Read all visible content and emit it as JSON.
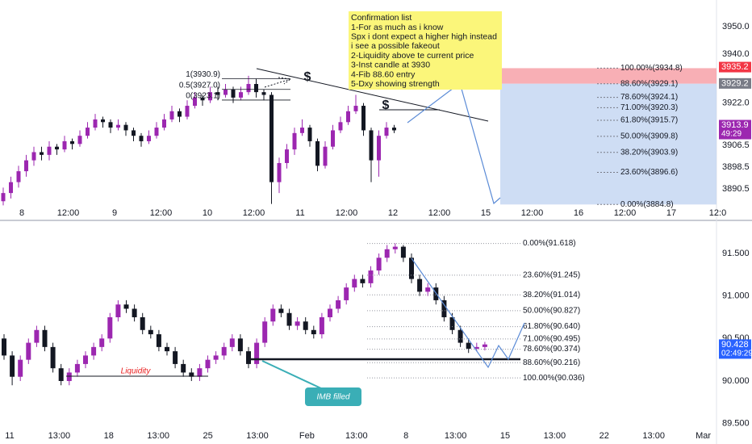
{
  "chart_data": [
    {
      "type": "candlestick",
      "ylim": [
        3884.3,
        3959.8
      ],
      "yticks": [
        {
          "value": 3950,
          "label": "3950.0"
        },
        {
          "value": 3940,
          "label": "3940.0"
        },
        {
          "value": 3922,
          "label": "3922.0"
        },
        {
          "value": 3906.5,
          "label": "3906.5"
        },
        {
          "value": 3898.5,
          "label": "3898.5"
        },
        {
          "value": 3890.5,
          "label": "3890.5"
        }
      ],
      "x_labels": [
        "8",
        "12:00",
        "9",
        "12:00",
        "10",
        "12:00",
        "11",
        "12:00",
        "12",
        "12:00",
        "15",
        "12:00",
        "16",
        "12:00",
        "17",
        "12:0"
      ],
      "up_color": "#9c27b0",
      "down_color": "#131722",
      "grid": false,
      "candles": [
        [
          3886,
          3891,
          3884.5,
          3889
        ],
        [
          3889,
          3895,
          3887,
          3893
        ],
        [
          3893,
          3899,
          3891,
          3897
        ],
        [
          3897,
          3903,
          3895,
          3901
        ],
        [
          3901,
          3906,
          3899,
          3904
        ],
        [
          3904,
          3906,
          3901,
          3903
        ],
        [
          3903,
          3908,
          3901,
          3906
        ],
        [
          3906,
          3907,
          3903,
          3905
        ],
        [
          3905,
          3910,
          3904,
          3908
        ],
        [
          3908,
          3909,
          3905,
          3907
        ],
        [
          3907,
          3912,
          3906,
          3910
        ],
        [
          3910,
          3915,
          3909,
          3913
        ],
        [
          3913,
          3918,
          3912,
          3916
        ],
        [
          3916,
          3917,
          3913,
          3915
        ],
        [
          3915,
          3916,
          3911,
          3913
        ],
        [
          3913,
          3916,
          3912,
          3914
        ],
        [
          3914,
          3915,
          3910,
          3912
        ],
        [
          3912,
          3913,
          3908,
          3910
        ],
        [
          3910,
          3911,
          3906,
          3908
        ],
        [
          3908,
          3912,
          3907,
          3910
        ],
        [
          3910,
          3915,
          3909,
          3913
        ],
        [
          3913,
          3918,
          3912,
          3916
        ],
        [
          3916,
          3921,
          3915,
          3919
        ],
        [
          3919,
          3920,
          3915,
          3917
        ],
        [
          3917,
          3923,
          3916,
          3921
        ],
        [
          3921,
          3926,
          3920,
          3924
        ],
        [
          3924,
          3925,
          3921,
          3923
        ],
        [
          3923,
          3928,
          3922,
          3926
        ],
        [
          3926,
          3928,
          3923,
          3925
        ],
        [
          3925,
          3929,
          3924,
          3927
        ],
        [
          3927,
          3928,
          3922,
          3924
        ],
        [
          3924,
          3928,
          3923,
          3926
        ],
        [
          3926,
          3932,
          3925,
          3929
        ],
        [
          3929,
          3931,
          3924,
          3926
        ],
        [
          3926,
          3927,
          3923,
          3925
        ],
        [
          3925,
          3926,
          3885,
          3893
        ],
        [
          3893,
          3902,
          3889,
          3900
        ],
        [
          3900,
          3907,
          3898,
          3905
        ],
        [
          3905,
          3913,
          3903,
          3911
        ],
        [
          3911,
          3916,
          3910,
          3913
        ],
        [
          3913,
          3914,
          3906,
          3908
        ],
        [
          3908,
          3909,
          3897,
          3899
        ],
        [
          3899,
          3908,
          3898,
          3906
        ],
        [
          3906,
          3914,
          3905,
          3912
        ],
        [
          3912,
          3917,
          3911,
          3915
        ],
        [
          3915,
          3921,
          3914,
          3919
        ],
        [
          3919,
          3925,
          3918,
          3921
        ],
        [
          3921,
          3922,
          3910,
          3912
        ],
        [
          3912,
          3913,
          3893,
          3901
        ],
        [
          3901,
          3912,
          3895,
          3910
        ],
        [
          3910,
          3915,
          3909,
          3913
        ],
        [
          3913,
          3914,
          3911,
          3912
        ]
      ],
      "fib_levels": [
        {
          "value": 3934.8,
          "label": "100.00%(3934.8)"
        },
        {
          "value": 3929.1,
          "label": "88.60%(3929.1)"
        },
        {
          "value": 3924.1,
          "label": "78.60%(3924.1)"
        },
        {
          "value": 3920.3,
          "label": "71.00%(3920.3)"
        },
        {
          "value": 3915.7,
          "label": "61.80%(3915.7)"
        },
        {
          "value": 3909.8,
          "label": "50.00%(3909.8)"
        },
        {
          "value": 3903.9,
          "label": "38.20%(3903.9)"
        },
        {
          "value": 3896.6,
          "label": "23.60%(3896.6)"
        },
        {
          "value": 3884.8,
          "label": "0.00%(3884.8)"
        }
      ],
      "small_fib": [
        {
          "value": 3930.9,
          "label": "1(3930.9)"
        },
        {
          "value": 3927.0,
          "label": "0.5(3927.0)"
        },
        {
          "value": 3923.1,
          "label": "0(3923.1)"
        }
      ],
      "price_tags": [
        {
          "value": 3935.2,
          "color": "#f23645"
        },
        {
          "value": 3929.2,
          "color": "#787b86"
        },
        {
          "value": 3913.9,
          "color": "#9c27b0",
          "countdown": "49:29"
        }
      ],
      "markers": [
        "$",
        "$"
      ],
      "note": {
        "title": "Confirmation list",
        "lines": [
          "1-For as much as i know",
          "Spx i dont expect a higher high instead",
          "i see a possible fakeout",
          "2-Liquidity above te current price",
          "3-Inst candle at 3930",
          "4-Fib 88.60 entry",
          "5-Dxy showing strength"
        ]
      }
    },
    {
      "type": "candlestick",
      "ylim": [
        89.449,
        91.823
      ],
      "yticks": [
        {
          "value": 91.5,
          "label": "91.500"
        },
        {
          "value": 91,
          "label": "91.000"
        },
        {
          "value": 90.5,
          "label": "90.500"
        },
        {
          "value": 90,
          "label": "90.000"
        },
        {
          "value": 89.5,
          "label": "89.500"
        }
      ],
      "x_labels": [
        "11",
        "13:00",
        "18",
        "13:00",
        "25",
        "13:00",
        "Feb",
        "13:00",
        "8",
        "13:00",
        "15",
        "13:00",
        "22",
        "13:00",
        "Mar"
      ],
      "up_color": "#9c27b0",
      "down_color": "#131722",
      "grid": false,
      "candles": [
        [
          90.5,
          90.55,
          90.25,
          90.3
        ],
        [
          90.3,
          90.35,
          89.95,
          90.05
        ],
        [
          90.05,
          90.3,
          90.0,
          90.25
        ],
        [
          90.25,
          90.5,
          90.2,
          90.45
        ],
        [
          90.45,
          90.65,
          90.4,
          90.6
        ],
        [
          90.6,
          90.65,
          90.35,
          90.4
        ],
        [
          90.4,
          90.45,
          90.1,
          90.15
        ],
        [
          90.15,
          90.2,
          89.95,
          90.0
        ],
        [
          90.0,
          90.15,
          89.95,
          90.1
        ],
        [
          90.1,
          90.25,
          90.05,
          90.2
        ],
        [
          90.2,
          90.35,
          90.15,
          90.3
        ],
        [
          90.3,
          90.45,
          90.25,
          90.4
        ],
        [
          90.4,
          90.55,
          90.35,
          90.5
        ],
        [
          90.5,
          90.8,
          90.45,
          90.75
        ],
        [
          90.75,
          90.95,
          90.7,
          90.9
        ],
        [
          90.9,
          90.95,
          90.8,
          90.85
        ],
        [
          90.85,
          90.9,
          90.7,
          90.75
        ],
        [
          90.75,
          90.8,
          90.55,
          90.6
        ],
        [
          90.6,
          90.65,
          90.5,
          90.55
        ],
        [
          90.55,
          90.6,
          90.35,
          90.4
        ],
        [
          90.4,
          90.45,
          90.3,
          90.35
        ],
        [
          90.35,
          90.4,
          90.15,
          90.2
        ],
        [
          90.2,
          90.25,
          90.05,
          90.1
        ],
        [
          90.1,
          90.15,
          90.0,
          90.05
        ],
        [
          90.05,
          90.2,
          90.0,
          90.15
        ],
        [
          90.15,
          90.3,
          90.1,
          90.25
        ],
        [
          90.25,
          90.35,
          90.2,
          90.3
        ],
        [
          90.3,
          90.45,
          90.25,
          90.4
        ],
        [
          90.4,
          90.55,
          90.35,
          90.5
        ],
        [
          90.5,
          90.55,
          90.3,
          90.35
        ],
        [
          90.35,
          90.4,
          90.15,
          90.2
        ],
        [
          90.2,
          90.5,
          90.15,
          90.45
        ],
        [
          90.45,
          90.75,
          90.4,
          90.7
        ],
        [
          90.7,
          90.9,
          90.65,
          90.85
        ],
        [
          90.85,
          90.9,
          90.75,
          90.8
        ],
        [
          90.8,
          90.85,
          90.6,
          90.65
        ],
        [
          90.65,
          90.75,
          90.6,
          90.7
        ],
        [
          90.7,
          90.75,
          90.55,
          90.6
        ],
        [
          90.6,
          90.65,
          90.5,
          90.55
        ],
        [
          90.55,
          90.8,
          90.5,
          90.75
        ],
        [
          90.75,
          90.9,
          90.7,
          90.85
        ],
        [
          90.85,
          91.0,
          90.8,
          90.95
        ],
        [
          90.95,
          91.15,
          90.9,
          91.1
        ],
        [
          91.1,
          91.25,
          91.05,
          91.2
        ],
        [
          91.2,
          91.25,
          91.1,
          91.15
        ],
        [
          91.15,
          91.35,
          91.1,
          91.3
        ],
        [
          91.3,
          91.5,
          91.25,
          91.45
        ],
        [
          91.45,
          91.6,
          91.4,
          91.55
        ],
        [
          91.55,
          91.62,
          91.5,
          91.58
        ],
        [
          91.58,
          91.6,
          91.4,
          91.45
        ],
        [
          91.45,
          91.5,
          91.15,
          91.2
        ],
        [
          91.2,
          91.25,
          91.0,
          91.05
        ],
        [
          91.05,
          91.15,
          91.0,
          91.1
        ],
        [
          91.1,
          91.15,
          90.9,
          90.95
        ],
        [
          90.95,
          91.0,
          90.7,
          90.75
        ],
        [
          90.75,
          90.8,
          90.55,
          90.6
        ],
        [
          90.6,
          90.65,
          90.4,
          90.45
        ],
        [
          90.45,
          90.5,
          90.33,
          90.38
        ],
        [
          90.38,
          90.45,
          90.35,
          90.4
        ],
        [
          90.4,
          90.46,
          90.36,
          90.43
        ]
      ],
      "fib_levels": [
        {
          "value": 91.618,
          "label": "0.00%(91.618)"
        },
        {
          "value": 91.245,
          "label": "23.60%(91.245)"
        },
        {
          "value": 91.014,
          "label": "38.20%(91.014)"
        },
        {
          "value": 90.827,
          "label": "50.00%(90.827)"
        },
        {
          "value": 90.64,
          "label": "61.80%(90.640)"
        },
        {
          "value": 90.495,
          "label": "71.00%(90.495)"
        },
        {
          "value": 90.374,
          "label": "78.60%(90.374)"
        },
        {
          "value": 90.216,
          "label": "88.60%(90.216)"
        },
        {
          "value": 90.036,
          "label": "100.00%(90.036)"
        }
      ],
      "price_tags": [
        {
          "value": 90.428,
          "color": "#2962ff",
          "countdown": "02:49:29"
        }
      ],
      "annotations": {
        "liquidity": "Liquidity",
        "callout": "IMB filled"
      }
    }
  ]
}
